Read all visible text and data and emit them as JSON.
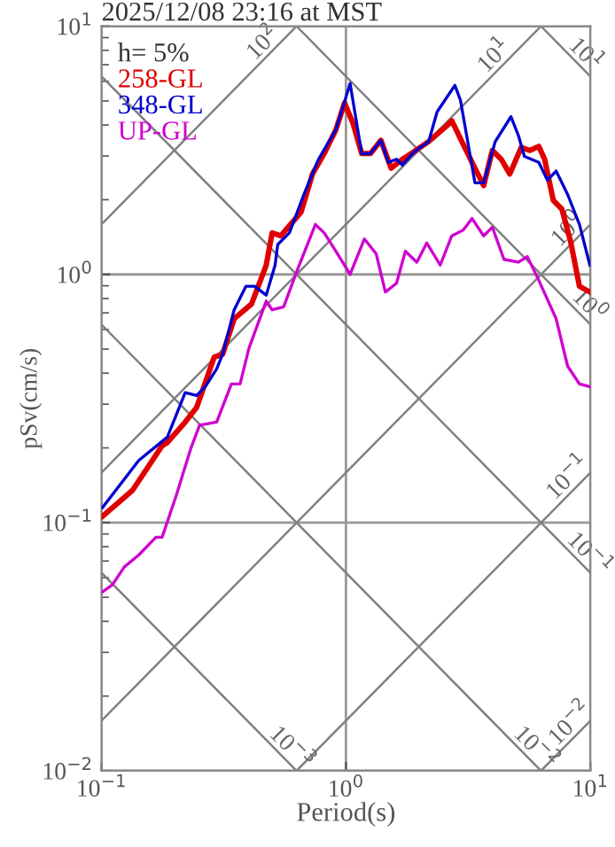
{
  "chart_data": {
    "type": "line",
    "title": "2025/12/08 23:16 at MST",
    "xlabel": "Period(s)",
    "ylabel": "pSv(cm/s)",
    "legend_title": "h= 5%",
    "legend": "top left",
    "log": "xy",
    "grid": true,
    "xlim": [
      0.1,
      10
    ],
    "ylim": [
      0.01,
      10
    ],
    "xticks": [
      {
        "value": 0.1,
        "label": "10$^{−1}$"
      },
      {
        "value": 1,
        "label": "10$^{0}$"
      },
      {
        "value": 10,
        "label": "10$^{1}$"
      }
    ],
    "yticks": [
      {
        "value": 0.01,
        "label": "10$^{−2}$"
      },
      {
        "value": 0.1,
        "label": "10$^{−1}$"
      },
      {
        "value": 1,
        "label": "10$^{0}$"
      },
      {
        "value": 10,
        "label": "10$^{1}$"
      }
    ],
    "series": [
      {
        "name": "258-GL",
        "color": "#e00000",
        "x": [
          0.101,
          0.134,
          0.177,
          0.186,
          0.22,
          0.245,
          0.289,
          0.313,
          0.349,
          0.411,
          0.472,
          0.499,
          0.541,
          0.655,
          0.73,
          0.815,
          0.91,
          0.987,
          1.07,
          1.16,
          1.26,
          1.39,
          1.53,
          1.7,
          1.85,
          2.18,
          2.56,
          2.71,
          2.94,
          3.37,
          3.66,
          3.97,
          4.32,
          4.68,
          5.21,
          5.66,
          6.15,
          6.5,
          7.05,
          7.65,
          8.31,
          9.02,
          9.95
        ],
        "values": [
          0.106,
          0.135,
          0.204,
          0.21,
          0.254,
          0.291,
          0.464,
          0.477,
          0.663,
          0.76,
          1.09,
          1.47,
          1.43,
          1.78,
          2.54,
          3.07,
          3.83,
          4.91,
          4.05,
          3.07,
          3.07,
          3.47,
          2.68,
          2.91,
          3.07,
          3.43,
          3.94,
          4.16,
          3.53,
          2.68,
          2.28,
          3.16,
          2.91,
          2.54,
          3.25,
          3.16,
          3.28,
          2.91,
          1.99,
          1.83,
          1.35,
          0.896,
          0.849
        ]
      },
      {
        "name": "348-GL",
        "color": "#0000d0",
        "x": [
          0.101,
          0.142,
          0.186,
          0.22,
          0.245,
          0.266,
          0.296,
          0.313,
          0.349,
          0.39,
          0.423,
          0.472,
          0.513,
          0.526,
          0.587,
          0.673,
          0.772,
          0.91,
          1.04,
          1.16,
          1.26,
          1.39,
          1.49,
          1.61,
          1.7,
          1.9,
          2.18,
          2.36,
          2.79,
          2.94,
          3.37,
          3.66,
          4.08,
          4.73,
          5.08,
          5.37,
          6.15,
          6.67,
          7.24,
          8.07,
          9.02,
          9.95
        ],
        "values": [
          0.115,
          0.178,
          0.221,
          0.334,
          0.325,
          0.353,
          0.416,
          0.477,
          0.72,
          0.896,
          0.896,
          0.825,
          1.09,
          1.32,
          1.47,
          2.1,
          2.91,
          3.83,
          5.88,
          3.07,
          3.07,
          3.47,
          2.83,
          2.91,
          2.76,
          3.11,
          3.43,
          4.52,
          5.78,
          5.04,
          2.34,
          2.34,
          3.43,
          4.32,
          3.62,
          2.99,
          2.83,
          2.4,
          2.61,
          2.1,
          1.59,
          1.09
        ]
      },
      {
        "name": "UP-GL",
        "color": "#d000d0",
        "x": [
          0.101,
          0.111,
          0.124,
          0.142,
          0.167,
          0.177,
          0.202,
          0.232,
          0.252,
          0.296,
          0.34,
          0.369,
          0.401,
          0.472,
          0.499,
          0.556,
          0.637,
          0.75,
          0.815,
          0.91,
          1.04,
          1.19,
          1.33,
          1.45,
          1.61,
          1.75,
          1.95,
          2.14,
          2.43,
          2.71,
          3.02,
          3.28,
          3.66,
          3.97,
          4.43,
          5.08,
          5.52,
          6.15,
          7.24,
          8.07,
          9.02,
          9.95
        ],
        "values": [
          0.0526,
          0.0562,
          0.0663,
          0.074,
          0.0873,
          0.0873,
          0.128,
          0.199,
          0.247,
          0.254,
          0.362,
          0.362,
          0.504,
          0.781,
          0.72,
          0.74,
          1.06,
          1.59,
          1.47,
          1.24,
          1.0,
          1.39,
          1.21,
          0.849,
          0.921,
          1.24,
          1.12,
          1.34,
          1.09,
          1.43,
          1.51,
          1.68,
          1.43,
          1.55,
          1.15,
          1.12,
          1.18,
          0.947,
          0.663,
          0.427,
          0.362,
          0.353
        ]
      },
      {
        "color": "#808080",
        "x": [
          0.1,
          0.628
        ],
        "values": [
          1.59,
          10
        ]
      },
      {
        "color": "#808080",
        "x": [
          0.1,
          6.28
        ],
        "values": [
          0.159,
          10
        ]
      },
      {
        "color": "#808080",
        "x": [
          0.1,
          10
        ],
        "values": [
          0.0159,
          1.59
        ]
      },
      {
        "color": "#808080",
        "x": [
          0.628,
          10
        ],
        "values": [
          0.01,
          0.159
        ]
      },
      {
        "color": "#808080",
        "x": [
          6.28,
          10
        ],
        "values": [
          0.01,
          0.0159
        ]
      },
      {
        "color": "#808080",
        "x": [
          6.28,
          10
        ],
        "values": [
          10,
          6.28
        ]
      },
      {
        "color": "#808080",
        "x": [
          0.628,
          10
        ],
        "values": [
          10,
          0.628
        ]
      },
      {
        "color": "#808080",
        "x": [
          0.1,
          10
        ],
        "values": [
          6.28,
          0.0628
        ]
      },
      {
        "color": "#808080",
        "x": [
          0.1,
          6.28
        ],
        "values": [
          0.628,
          0.01
        ]
      },
      {
        "color": "#808080",
        "x": [
          0.1,
          0.628
        ],
        "values": [
          0.0628,
          0.01
        ]
      }
    ],
    "annotations": [
      {
        "text": "10$^{2}$",
        "x": 0.499,
        "y": 7.9
      },
      {
        "text": "10$^{1}$",
        "x": 4.4,
        "y": 7.0
      },
      {
        "text": "10$^{1}$",
        "x": 8.8,
        "y": 7.1
      },
      {
        "text": "10$^{0}$",
        "x": 8.8,
        "y": 1.4
      },
      {
        "text": "10$^{0}$",
        "x": 9.1,
        "y": 0.69
      },
      {
        "text": "10$^{−1}$",
        "x": 8.8,
        "y": 0.14
      },
      {
        "text": "10$^{−1}$",
        "x": 9.1,
        "y": 0.069
      },
      {
        "text": "10$^{−2}$",
        "x": 9.0,
        "y": 0.0143
      },
      {
        "text": "10$^{−2}$",
        "x": 5.5,
        "y": 0.0114
      },
      {
        "text": "10$^{−3}$",
        "x": 0.55,
        "y": 0.0114
      }
    ]
  }
}
